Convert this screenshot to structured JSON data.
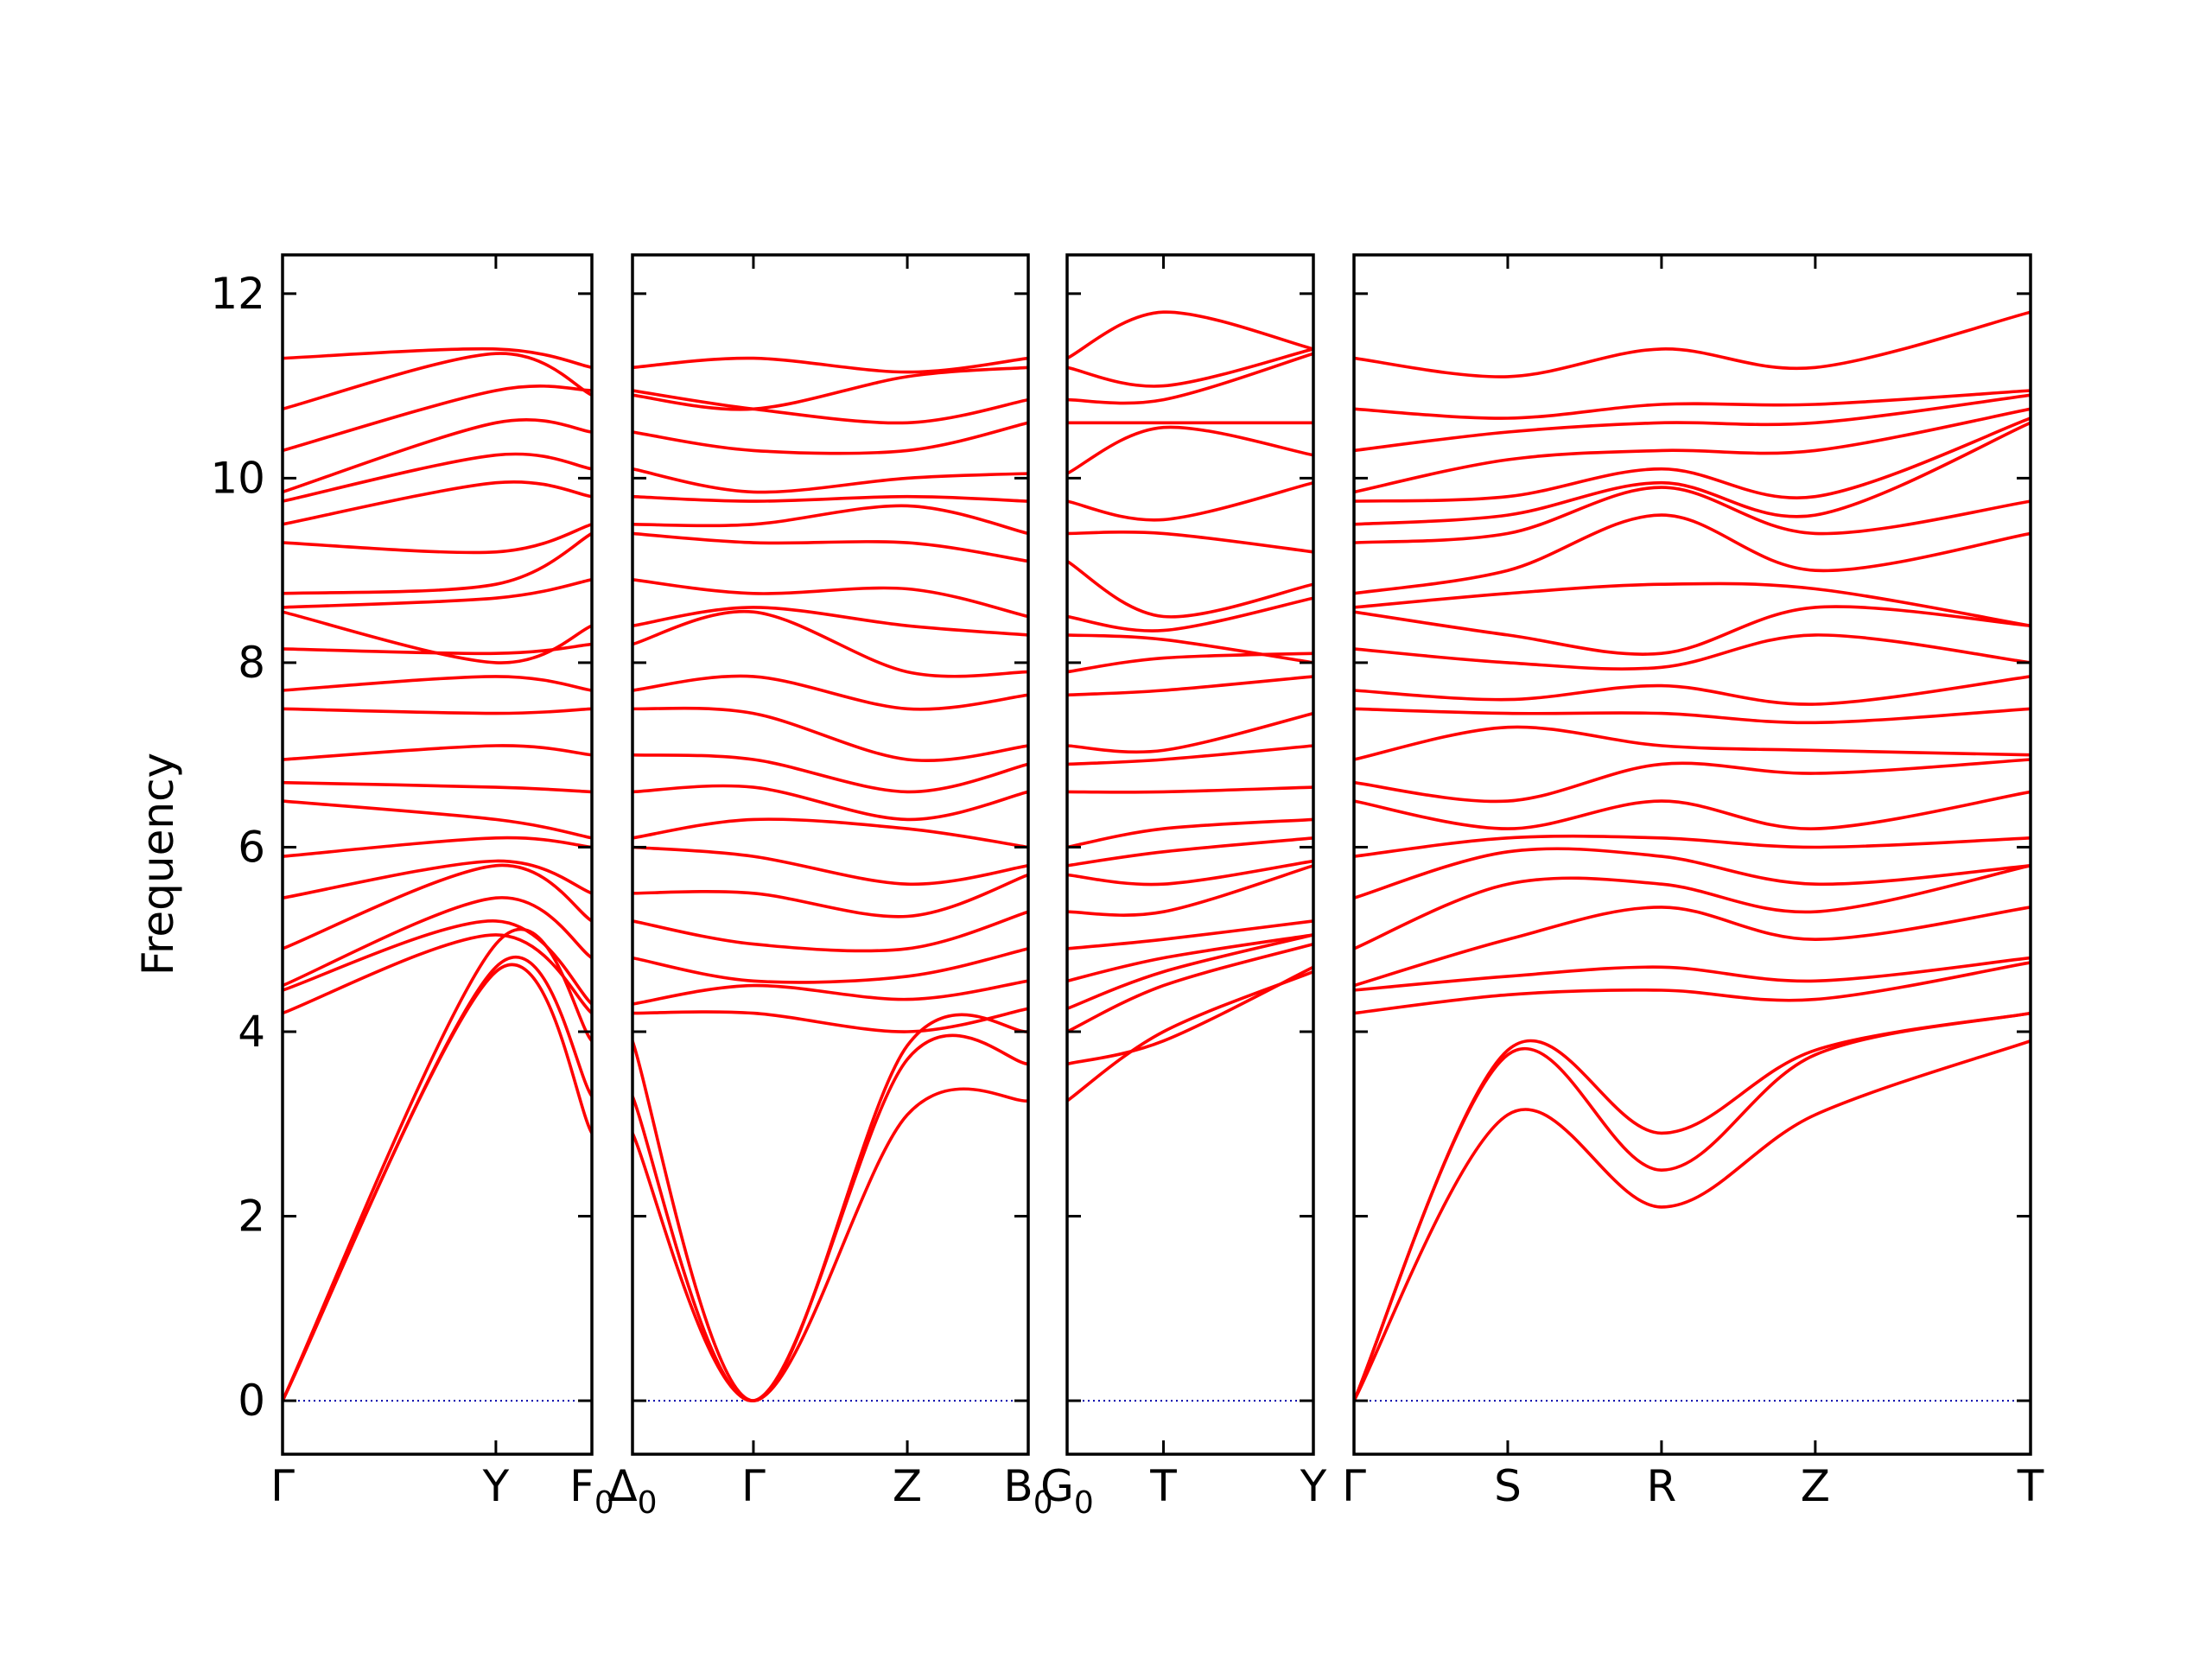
{
  "colors": {
    "bands": "#ff0000",
    "zero_line": "#0000aa",
    "frame": "#000000"
  },
  "chart_data": {
    "type": "line",
    "title": "",
    "ylabel": "Frequency",
    "xlabel": "",
    "ylim": [
      -0.58,
      12.42
    ],
    "yticks": [
      0,
      2,
      4,
      6,
      8,
      10,
      12
    ],
    "grid": false,
    "legend": "none",
    "panels": [
      {
        "segments": [
          {
            "from": "Γ",
            "to": "Y",
            "length": 1.0
          },
          {
            "from": "Y",
            "to": "F0",
            "length": 0.45
          }
        ],
        "tick_labels": [
          "Γ",
          "Y",
          "F0"
        ],
        "bands": [
          {
            "name": "",
            "values": [
              0.0,
              4.65,
              2.9
            ]
          },
          {
            "name": "",
            "values": [
              0.0,
              4.7,
              3.3
            ]
          },
          {
            "name": "",
            "values": [
              0.0,
              4.95,
              3.9
            ]
          },
          {
            "name": "",
            "values": [
              4.2,
              5.05,
              4.2
            ]
          },
          {
            "name": "",
            "values": [
              4.45,
              5.2,
              4.3
            ]
          },
          {
            "name": "",
            "values": [
              4.5,
              5.45,
              4.8
            ]
          },
          {
            "name": "",
            "values": [
              4.9,
              5.8,
              5.2
            ]
          },
          {
            "name": "",
            "values": [
              5.45,
              5.85,
              5.5
            ]
          },
          {
            "name": "",
            "values": [
              5.9,
              6.1,
              6.0
            ]
          },
          {
            "name": "",
            "values": [
              6.5,
              6.3,
              6.1
            ]
          },
          {
            "name": "",
            "values": [
              6.7,
              6.65,
              6.6
            ]
          },
          {
            "name": "",
            "values": [
              6.95,
              7.1,
              7.0
            ]
          },
          {
            "name": "",
            "values": [
              7.5,
              7.45,
              7.5
            ]
          },
          {
            "name": "",
            "values": [
              7.7,
              7.85,
              7.7
            ]
          },
          {
            "name": "",
            "values": [
              8.15,
              8.1,
              8.2
            ]
          },
          {
            "name": "",
            "values": [
              8.55,
              8.0,
              8.4
            ]
          },
          {
            "name": "",
            "values": [
              8.6,
              8.7,
              8.9
            ]
          },
          {
            "name": "",
            "values": [
              8.75,
              8.85,
              9.4
            ]
          },
          {
            "name": "",
            "values": [
              9.3,
              9.2,
              9.5
            ]
          },
          {
            "name": "",
            "values": [
              9.5,
              9.95,
              9.8
            ]
          },
          {
            "name": "",
            "values": [
              9.75,
              10.25,
              10.1
            ]
          },
          {
            "name": "",
            "values": [
              9.85,
              10.6,
              10.5
            ]
          },
          {
            "name": "",
            "values": [
              10.3,
              10.95,
              10.95
            ]
          },
          {
            "name": "",
            "values": [
              10.75,
              11.35,
              10.9
            ]
          },
          {
            "name": "",
            "values": [
              11.3,
              11.4,
              11.2
            ]
          }
        ]
      },
      {
        "segments": [
          {
            "from": "Δ0",
            "to": "Γ",
            "length": 0.55
          },
          {
            "from": "Γ",
            "to": "Z",
            "length": 0.7
          },
          {
            "from": "Z",
            "to": "B0",
            "length": 0.55
          }
        ],
        "tick_labels": [
          "Δ0",
          "Γ",
          "Z",
          "B0"
        ],
        "bands": [
          {
            "name": "",
            "values": [
              2.9,
              0.0,
              3.1,
              3.25
            ]
          },
          {
            "name": "",
            "values": [
              3.3,
              0.0,
              3.7,
              3.65
            ]
          },
          {
            "name": "",
            "values": [
              3.9,
              0.0,
              3.85,
              4.0
            ]
          },
          {
            "name": "",
            "values": [
              4.2,
              4.2,
              4.0,
              4.25
            ]
          },
          {
            "name": "",
            "values": [
              4.3,
              4.5,
              4.35,
              4.55
            ]
          },
          {
            "name": "",
            "values": [
              4.8,
              4.55,
              4.6,
              4.9
            ]
          },
          {
            "name": "",
            "values": [
              5.2,
              4.95,
              4.9,
              5.3
            ]
          },
          {
            "name": "",
            "values": [
              5.5,
              5.5,
              5.25,
              5.7
            ]
          },
          {
            "name": "",
            "values": [
              6.0,
              5.9,
              5.6,
              5.8
            ]
          },
          {
            "name": "",
            "values": [
              6.1,
              6.3,
              6.2,
              6.0
            ]
          },
          {
            "name": "",
            "values": [
              6.6,
              6.65,
              6.3,
              6.6
            ]
          },
          {
            "name": "",
            "values": [
              7.0,
              6.95,
              6.6,
              6.9
            ]
          },
          {
            "name": "",
            "values": [
              7.5,
              7.45,
              6.95,
              7.1
            ]
          },
          {
            "name": "",
            "values": [
              7.7,
              7.85,
              7.5,
              7.65
            ]
          },
          {
            "name": "",
            "values": [
              8.2,
              8.55,
              7.9,
              7.9
            ]
          },
          {
            "name": "",
            "values": [
              8.4,
              8.6,
              8.4,
              8.3
            ]
          },
          {
            "name": "",
            "values": [
              8.9,
              8.75,
              8.8,
              8.5
            ]
          },
          {
            "name": "",
            "values": [
              9.4,
              9.3,
              9.3,
              9.1
            ]
          },
          {
            "name": "",
            "values": [
              9.5,
              9.5,
              9.7,
              9.4
            ]
          },
          {
            "name": "",
            "values": [
              9.8,
              9.75,
              9.8,
              9.75
            ]
          },
          {
            "name": "",
            "values": [
              10.1,
              9.85,
              10.0,
              10.05
            ]
          },
          {
            "name": "",
            "values": [
              10.5,
              10.3,
              10.3,
              10.6
            ]
          },
          {
            "name": "",
            "values": [
              10.95,
              10.75,
              10.6,
              10.85
            ]
          },
          {
            "name": "",
            "values": [
              10.9,
              10.75,
              11.1,
              11.2
            ]
          },
          {
            "name": "",
            "values": [
              11.2,
              11.3,
              11.15,
              11.3
            ]
          }
        ]
      },
      {
        "segments": [
          {
            "from": "G0",
            "to": "T",
            "length": 0.45
          },
          {
            "from": "T",
            "to": "Y",
            "length": 0.7
          }
        ],
        "tick_labels": [
          "G0",
          "T",
          "Y"
        ],
        "bands": [
          {
            "name": "",
            "values": [
              3.25,
              4.0,
              4.65
            ]
          },
          {
            "name": "",
            "values": [
              3.65,
              3.9,
              4.7
            ]
          },
          {
            "name": "",
            "values": [
              4.0,
              4.5,
              4.95
            ]
          },
          {
            "name": "",
            "values": [
              4.25,
              4.65,
              5.05
            ]
          },
          {
            "name": "",
            "values": [
              4.55,
              4.8,
              5.05
            ]
          },
          {
            "name": "",
            "values": [
              4.9,
              5.0,
              5.2
            ]
          },
          {
            "name": "",
            "values": [
              5.3,
              5.3,
              5.8
            ]
          },
          {
            "name": "",
            "values": [
              5.7,
              5.6,
              5.85
            ]
          },
          {
            "name": "",
            "values": [
              5.8,
              5.95,
              6.1
            ]
          },
          {
            "name": "",
            "values": [
              6.0,
              6.2,
              6.3
            ]
          },
          {
            "name": "",
            "values": [
              6.6,
              6.6,
              6.65
            ]
          },
          {
            "name": "",
            "values": [
              6.9,
              6.95,
              7.1
            ]
          },
          {
            "name": "",
            "values": [
              7.1,
              7.05,
              7.45
            ]
          },
          {
            "name": "",
            "values": [
              7.65,
              7.7,
              7.85
            ]
          },
          {
            "name": "",
            "values": [
              7.9,
              8.05,
              8.1
            ]
          },
          {
            "name": "",
            "values": [
              8.3,
              8.25,
              8.0
            ]
          },
          {
            "name": "",
            "values": [
              8.5,
              8.35,
              8.7
            ]
          },
          {
            "name": "",
            "values": [
              9.1,
              8.5,
              8.85
            ]
          },
          {
            "name": "",
            "values": [
              9.4,
              9.4,
              9.2
            ]
          },
          {
            "name": "",
            "values": [
              9.75,
              9.55,
              9.95
            ]
          },
          {
            "name": "",
            "values": [
              10.05,
              10.55,
              10.25
            ]
          },
          {
            "name": "",
            "values": [
              10.6,
              10.6,
              10.6
            ]
          },
          {
            "name": "",
            "values": [
              10.85,
              10.85,
              11.35
            ]
          },
          {
            "name": "",
            "values": [
              11.2,
              11.0,
              11.4
            ]
          },
          {
            "name": "",
            "values": [
              11.3,
              11.8,
              11.4
            ]
          }
        ]
      },
      {
        "segments": [
          {
            "from": "Γ",
            "to": "S",
            "length": 0.5
          },
          {
            "from": "S",
            "to": "R",
            "length": 0.5
          },
          {
            "from": "R",
            "to": "Z",
            "length": 0.5
          },
          {
            "from": "Z",
            "to": "T",
            "length": 0.7
          }
        ],
        "tick_labels": [
          "Γ",
          "S",
          "R",
          "Z",
          "T"
        ],
        "bands": [
          {
            "name": "",
            "values": [
              0.0,
              3.1,
              2.1,
              3.1,
              3.9
            ]
          },
          {
            "name": "",
            "values": [
              0.0,
              3.75,
              2.5,
              3.75,
              4.2
            ]
          },
          {
            "name": "",
            "values": [
              0.0,
              3.8,
              2.9,
              3.8,
              4.2
            ]
          },
          {
            "name": "",
            "values": [
              4.2,
              4.4,
              4.45,
              4.35,
              4.75
            ]
          },
          {
            "name": "",
            "values": [
              4.45,
              4.6,
              4.7,
              4.55,
              4.8
            ]
          },
          {
            "name": "",
            "values": [
              4.5,
              5.0,
              5.35,
              5.0,
              5.35
            ]
          },
          {
            "name": "",
            "values": [
              4.9,
              5.6,
              5.6,
              5.3,
              5.8
            ]
          },
          {
            "name": "",
            "values": [
              5.45,
              5.95,
              5.9,
              5.6,
              5.8
            ]
          },
          {
            "name": "",
            "values": [
              5.9,
              6.1,
              6.1,
              6.0,
              6.1
            ]
          },
          {
            "name": "",
            "values": [
              6.5,
              6.2,
              6.5,
              6.2,
              6.6
            ]
          },
          {
            "name": "",
            "values": [
              6.7,
              6.5,
              6.9,
              6.8,
              6.95
            ]
          },
          {
            "name": "",
            "values": [
              6.95,
              7.3,
              7.1,
              7.05,
              7.0
            ]
          },
          {
            "name": "",
            "values": [
              7.5,
              7.45,
              7.45,
              7.35,
              7.5
            ]
          },
          {
            "name": "",
            "values": [
              7.7,
              7.6,
              7.75,
              7.55,
              7.85
            ]
          },
          {
            "name": "",
            "values": [
              8.15,
              8.0,
              7.95,
              8.3,
              8.0
            ]
          },
          {
            "name": "",
            "values": [
              8.55,
              8.3,
              8.1,
              8.6,
              8.4
            ]
          },
          {
            "name": "",
            "values": [
              8.6,
              8.75,
              8.85,
              8.8,
              8.4
            ]
          },
          {
            "name": "",
            "values": [
              8.75,
              9.0,
              9.6,
              9.0,
              9.4
            ]
          },
          {
            "name": "",
            "values": [
              9.3,
              9.4,
              9.9,
              9.4,
              9.75
            ]
          },
          {
            "name": "",
            "values": [
              9.5,
              9.6,
              9.95,
              9.6,
              10.6
            ]
          },
          {
            "name": "",
            "values": [
              9.75,
              9.8,
              10.1,
              9.8,
              10.65
            ]
          },
          {
            "name": "",
            "values": [
              9.85,
              10.2,
              10.3,
              10.3,
              10.75
            ]
          },
          {
            "name": "",
            "values": [
              10.3,
              10.5,
              10.6,
              10.6,
              10.9
            ]
          },
          {
            "name": "",
            "values": [
              10.75,
              10.65,
              10.8,
              10.8,
              10.95
            ]
          },
          {
            "name": "",
            "values": [
              11.3,
              11.1,
              11.4,
              11.2,
              11.8
            ]
          }
        ]
      }
    ]
  }
}
